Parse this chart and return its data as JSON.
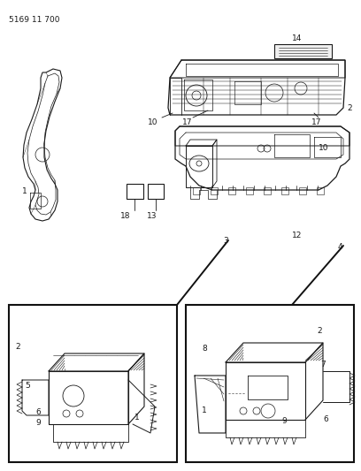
{
  "title": "5169 11 700",
  "bg_color": "#ffffff",
  "line_color": "#1a1a1a",
  "fig_width": 4.08,
  "fig_height": 5.33,
  "dpi": 100
}
